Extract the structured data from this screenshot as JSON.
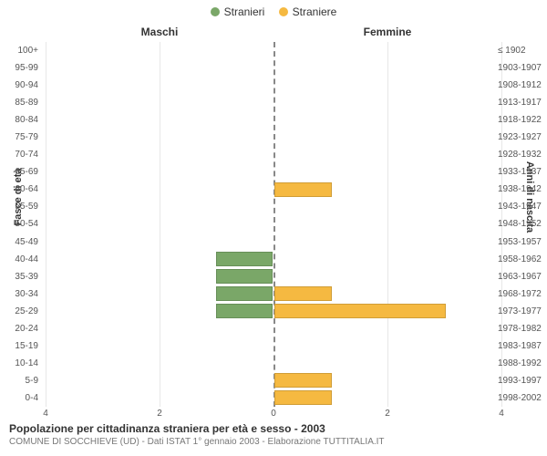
{
  "chart": {
    "type": "population-pyramid",
    "background_color": "#ffffff",
    "grid_color": "#e7e7e7",
    "center_line_color": "#888888",
    "legend": [
      {
        "label": "Stranieri",
        "color": "#7aa768"
      },
      {
        "label": "Straniere",
        "color": "#f5b941"
      }
    ],
    "column_titles": {
      "left": "Maschi",
      "right": "Femmine"
    },
    "y_axis_left_title": "Fasce di età",
    "y_axis_right_title": "Anni di nascita",
    "x_axis": {
      "max": 4,
      "ticks": [
        4,
        2,
        0,
        2,
        4
      ]
    },
    "title": "Popolazione per cittadinanza straniera per età e sesso - 2003",
    "subtitle": "COMUNE DI SOCCHIEVE (UD) - Dati ISTAT 1° gennaio 2003 - Elaborazione TUTTITALIA.IT",
    "male_color": "#7aa768",
    "female_color": "#f5b941",
    "bands": [
      {
        "age": "100+",
        "birth": "≤ 1902",
        "m": 0,
        "f": 0
      },
      {
        "age": "95-99",
        "birth": "1903-1907",
        "m": 0,
        "f": 0
      },
      {
        "age": "90-94",
        "birth": "1908-1912",
        "m": 0,
        "f": 0
      },
      {
        "age": "85-89",
        "birth": "1913-1917",
        "m": 0,
        "f": 0
      },
      {
        "age": "80-84",
        "birth": "1918-1922",
        "m": 0,
        "f": 0
      },
      {
        "age": "75-79",
        "birth": "1923-1927",
        "m": 0,
        "f": 0
      },
      {
        "age": "70-74",
        "birth": "1928-1932",
        "m": 0,
        "f": 0
      },
      {
        "age": "65-69",
        "birth": "1933-1937",
        "m": 0,
        "f": 0
      },
      {
        "age": "60-64",
        "birth": "1938-1942",
        "m": 0,
        "f": 1
      },
      {
        "age": "55-59",
        "birth": "1943-1947",
        "m": 0,
        "f": 0
      },
      {
        "age": "50-54",
        "birth": "1948-1952",
        "m": 0,
        "f": 0
      },
      {
        "age": "45-49",
        "birth": "1953-1957",
        "m": 0,
        "f": 0
      },
      {
        "age": "40-44",
        "birth": "1958-1962",
        "m": 1,
        "f": 0
      },
      {
        "age": "35-39",
        "birth": "1963-1967",
        "m": 1,
        "f": 0
      },
      {
        "age": "30-34",
        "birth": "1968-1972",
        "m": 1,
        "f": 1
      },
      {
        "age": "25-29",
        "birth": "1973-1977",
        "m": 1,
        "f": 3
      },
      {
        "age": "20-24",
        "birth": "1978-1982",
        "m": 0,
        "f": 0
      },
      {
        "age": "15-19",
        "birth": "1983-1987",
        "m": 0,
        "f": 0
      },
      {
        "age": "10-14",
        "birth": "1988-1992",
        "m": 0,
        "f": 0
      },
      {
        "age": "5-9",
        "birth": "1993-1997",
        "m": 0,
        "f": 1
      },
      {
        "age": "0-4",
        "birth": "1998-2002",
        "m": 0,
        "f": 1
      }
    ]
  }
}
